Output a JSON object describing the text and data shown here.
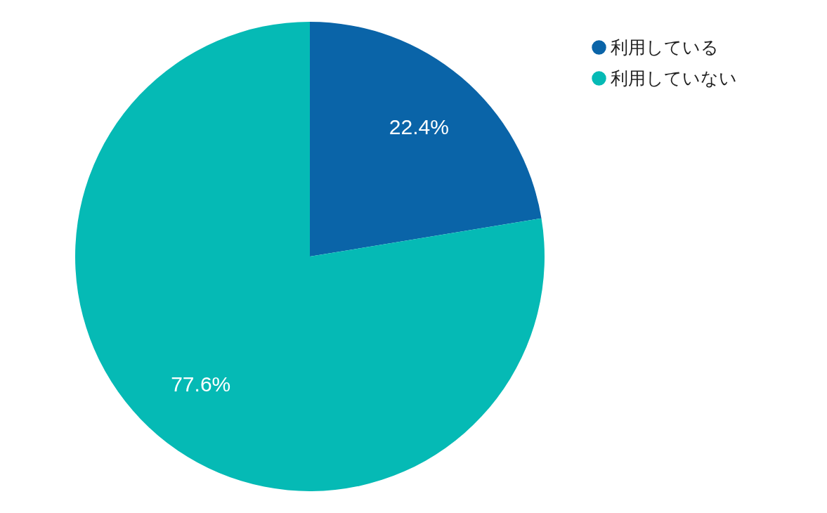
{
  "chart_data": {
    "type": "pie",
    "categories": [
      "利用している",
      "利用していない"
    ],
    "values": [
      22.4,
      77.6
    ],
    "colors": [
      "#0a64a8",
      "#05bab5"
    ],
    "value_labels": [
      "22.4%",
      "77.6%"
    ],
    "legend": "top right"
  }
}
